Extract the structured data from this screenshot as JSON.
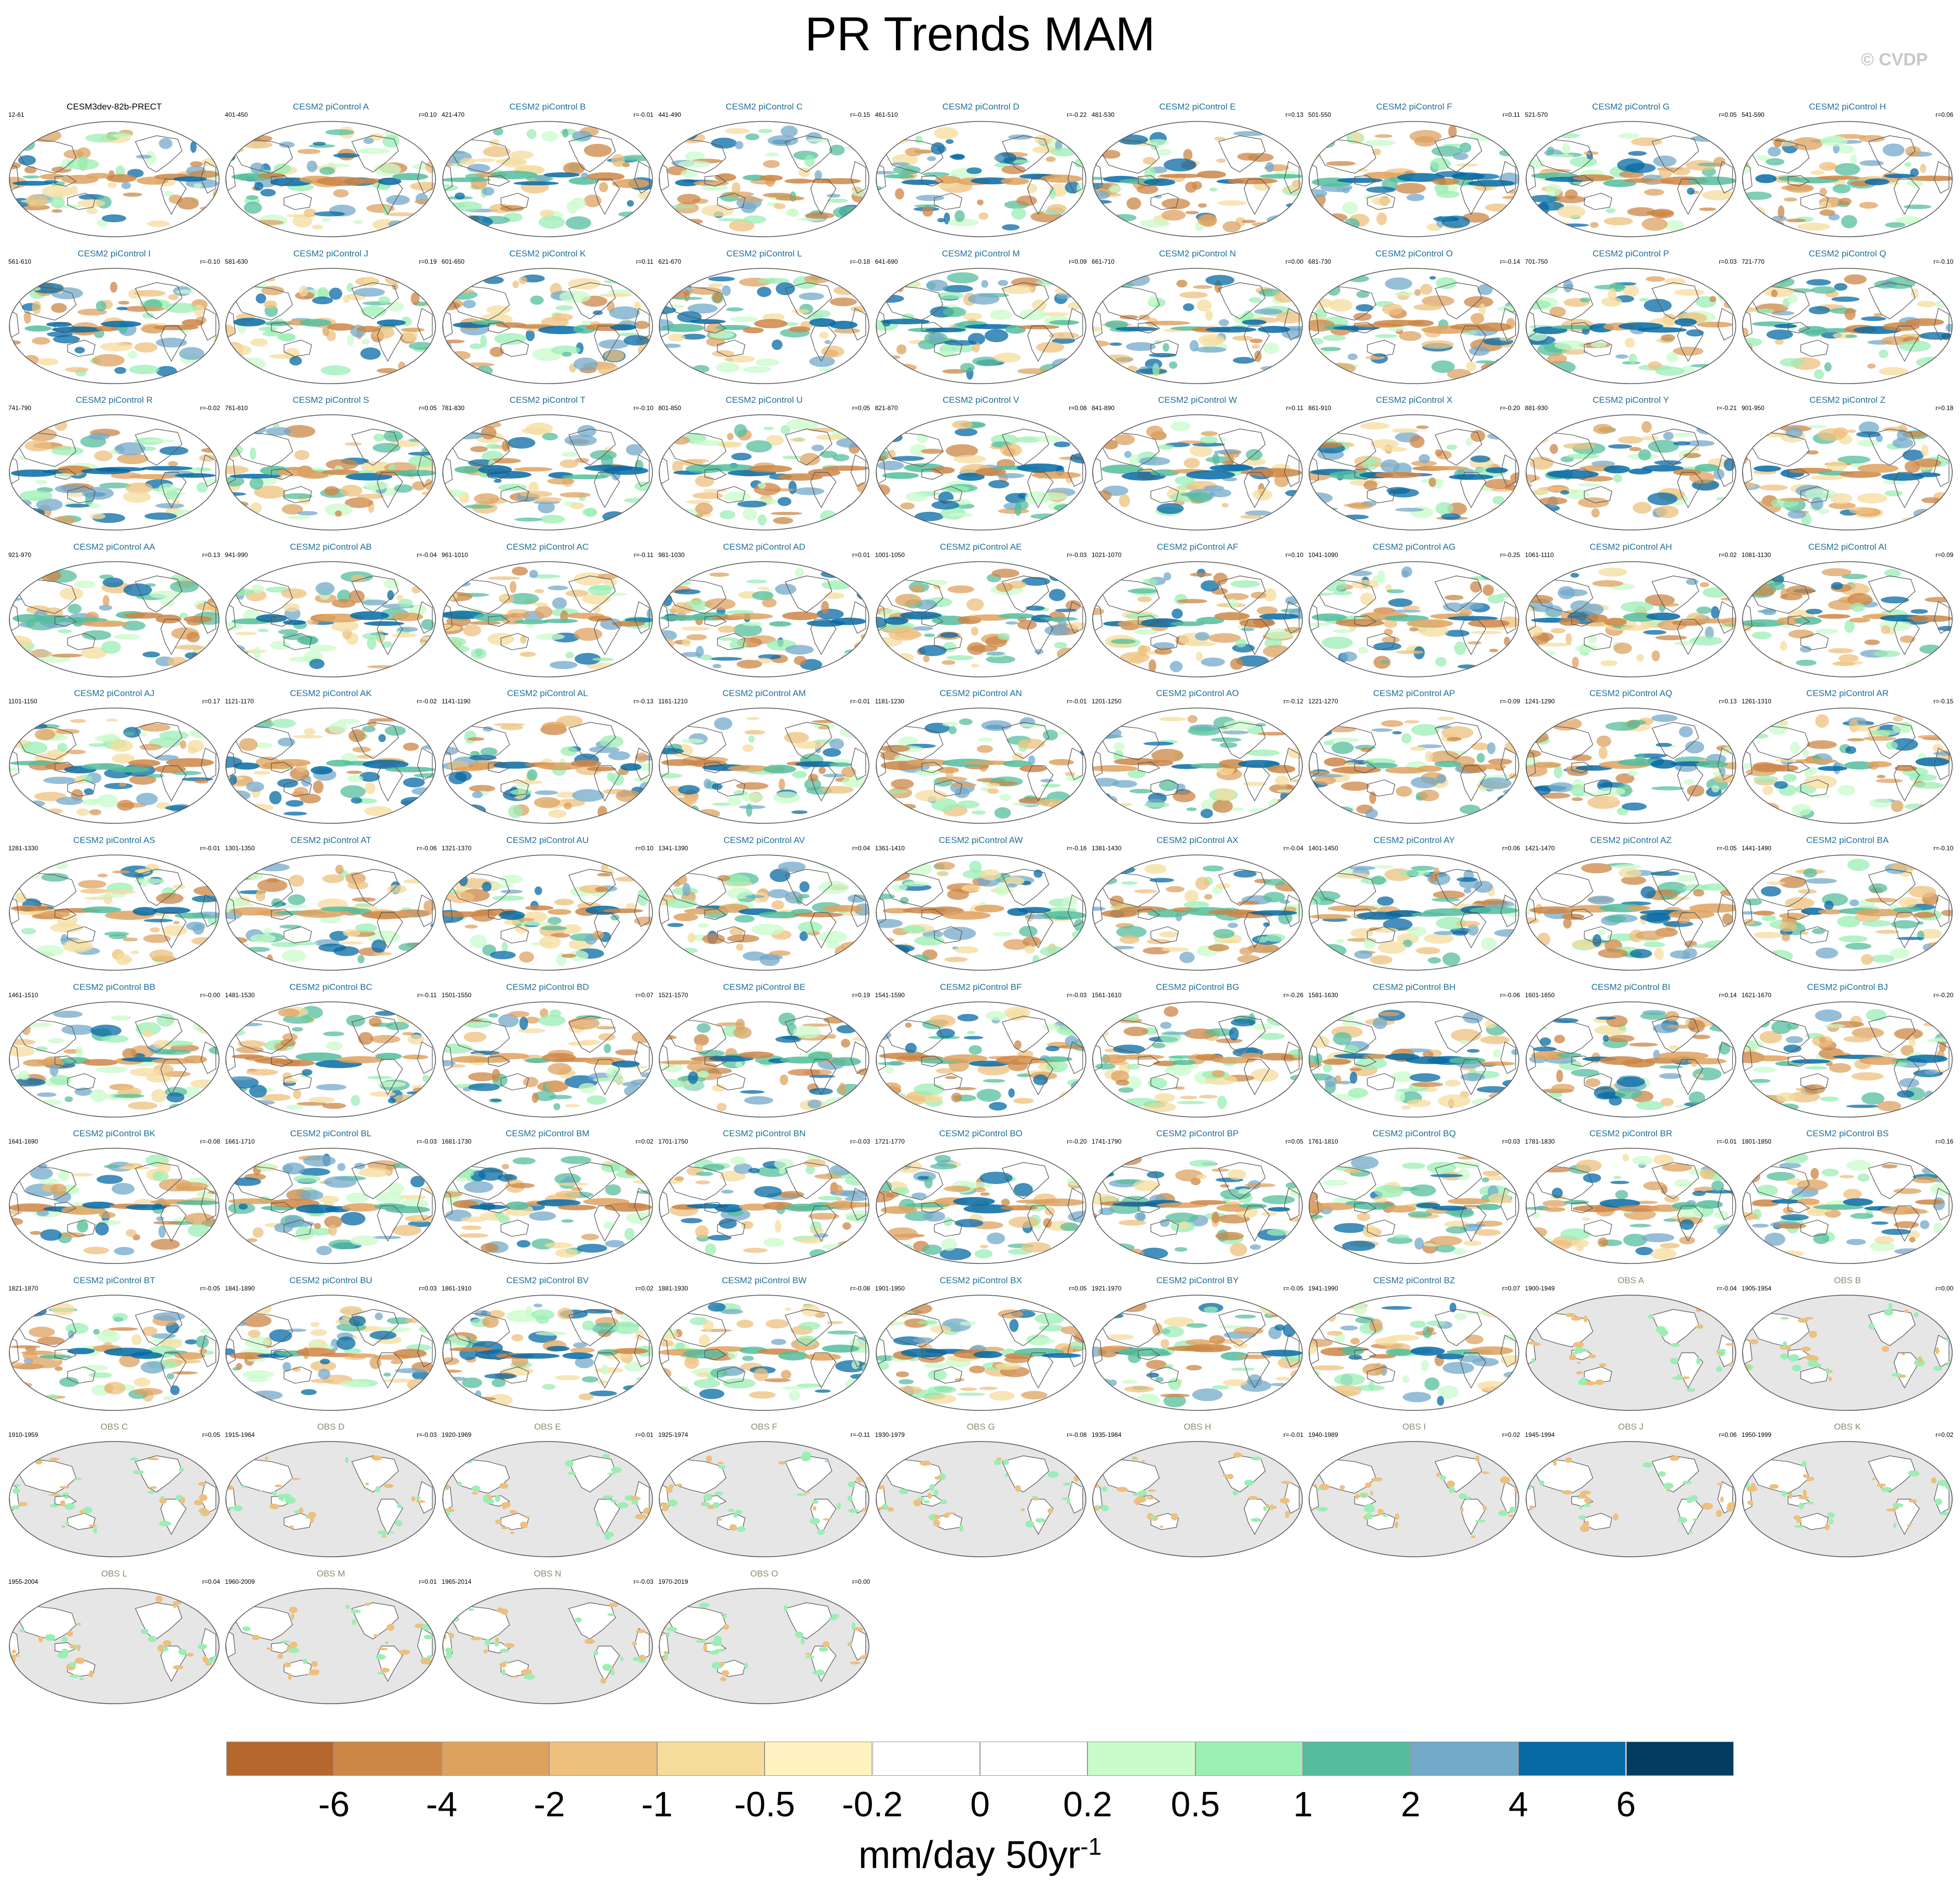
{
  "title": "PR Trends MAM",
  "copyright": "© CVDP",
  "panels": [
    {
      "title": "CESM3dev-82b-PRECT",
      "years": "12-61",
      "r": "",
      "kind": "ref"
    },
    {
      "title": "CESM2 piControl A",
      "years": "401-450",
      "r": "r=0.10",
      "kind": "model"
    },
    {
      "title": "CESM2 piControl B",
      "years": "421-470",
      "r": "r=-0.01",
      "kind": "model"
    },
    {
      "title": "CESM2 piControl C",
      "years": "441-490",
      "r": "r=-0.15",
      "kind": "model"
    },
    {
      "title": "CESM2 piControl D",
      "years": "461-510",
      "r": "r=-0.22",
      "kind": "model"
    },
    {
      "title": "CESM2 piControl E",
      "years": "481-530",
      "r": "r=0.13",
      "kind": "model"
    },
    {
      "title": "CESM2 piControl F",
      "years": "501-550",
      "r": "r=0.11",
      "kind": "model"
    },
    {
      "title": "CESM2 piControl G",
      "years": "521-570",
      "r": "r=0.05",
      "kind": "model"
    },
    {
      "title": "CESM2 piControl H",
      "years": "541-590",
      "r": "r=0.06",
      "kind": "model"
    },
    {
      "title": "CESM2 piControl I",
      "years": "561-610",
      "r": "r=-0.10",
      "kind": "model"
    },
    {
      "title": "CESM2 piControl J",
      "years": "581-630",
      "r": "r=0.19",
      "kind": "model"
    },
    {
      "title": "CESM2 piControl K",
      "years": "601-650",
      "r": "r=0.11",
      "kind": "model"
    },
    {
      "title": "CESM2 piControl L",
      "years": "621-670",
      "r": "r=-0.18",
      "kind": "model"
    },
    {
      "title": "CESM2 piControl M",
      "years": "641-690",
      "r": "r=0.09",
      "kind": "model"
    },
    {
      "title": "CESM2 piControl N",
      "years": "661-710",
      "r": "r=0.00",
      "kind": "model"
    },
    {
      "title": "CESM2 piControl O",
      "years": "681-730",
      "r": "r=-0.14",
      "kind": "model"
    },
    {
      "title": "CESM2 piControl P",
      "years": "701-750",
      "r": "r=0.03",
      "kind": "model"
    },
    {
      "title": "CESM2 piControl Q",
      "years": "721-770",
      "r": "r=-0.10",
      "kind": "model"
    },
    {
      "title": "CESM2 piControl R",
      "years": "741-790",
      "r": "r=-0.02",
      "kind": "model"
    },
    {
      "title": "CESM2 piControl S",
      "years": "761-810",
      "r": "r=0.05",
      "kind": "model"
    },
    {
      "title": "CESM2 piControl T",
      "years": "781-830",
      "r": "r=-0.10",
      "kind": "model"
    },
    {
      "title": "CESM2 piControl U",
      "years": "801-850",
      "r": "r=0.05",
      "kind": "model"
    },
    {
      "title": "CESM2 piControl V",
      "years": "821-870",
      "r": "r=0.08",
      "kind": "model"
    },
    {
      "title": "CESM2 piControl W",
      "years": "841-890",
      "r": "r=0.11",
      "kind": "model"
    },
    {
      "title": "CESM2 piControl X",
      "years": "861-910",
      "r": "r=-0.20",
      "kind": "model"
    },
    {
      "title": "CESM2 piControl Y",
      "years": "881-930",
      "r": "r=-0.21",
      "kind": "model"
    },
    {
      "title": "CESM2 piControl Z",
      "years": "901-950",
      "r": "r=0.18",
      "kind": "model"
    },
    {
      "title": "CESM2 piControl AA",
      "years": "921-970",
      "r": "r=0.13",
      "kind": "model"
    },
    {
      "title": "CESM2 piControl AB",
      "years": "941-990",
      "r": "r=-0.04",
      "kind": "model"
    },
    {
      "title": "CESM2 piControl AC",
      "years": "961-1010",
      "r": "r=-0.11",
      "kind": "model"
    },
    {
      "title": "CESM2 piControl AD",
      "years": "981-1030",
      "r": "r=0.01",
      "kind": "model"
    },
    {
      "title": "CESM2 piControl AE",
      "years": "1001-1050",
      "r": "r=-0.03",
      "kind": "model"
    },
    {
      "title": "CESM2 piControl AF",
      "years": "1021-1070",
      "r": "r=0.10",
      "kind": "model"
    },
    {
      "title": "CESM2 piControl AG",
      "years": "1041-1090",
      "r": "r=-0.25",
      "kind": "model"
    },
    {
      "title": "CESM2 piControl AH",
      "years": "1061-1110",
      "r": "r=0.02",
      "kind": "model"
    },
    {
      "title": "CESM2 piControl AI",
      "years": "1081-1130",
      "r": "r=0.09",
      "kind": "model"
    },
    {
      "title": "CESM2 piControl AJ",
      "years": "1101-1150",
      "r": "r=0.17",
      "kind": "model"
    },
    {
      "title": "CESM2 piControl AK",
      "years": "1121-1170",
      "r": "r=-0.02",
      "kind": "model"
    },
    {
      "title": "CESM2 piControl AL",
      "years": "1141-1190",
      "r": "r=-0.13",
      "kind": "model"
    },
    {
      "title": "CESM2 piControl AM",
      "years": "1161-1210",
      "r": "r=-0.01",
      "kind": "model"
    },
    {
      "title": "CESM2 piControl AN",
      "years": "1181-1230",
      "r": "r=-0.01",
      "kind": "model"
    },
    {
      "title": "CESM2 piControl AO",
      "years": "1201-1250",
      "r": "r=-0.12",
      "kind": "model"
    },
    {
      "title": "CESM2 piControl AP",
      "years": "1221-1270",
      "r": "r=-0.09",
      "kind": "model"
    },
    {
      "title": "CESM2 piControl AQ",
      "years": "1241-1290",
      "r": "r=0.13",
      "kind": "model"
    },
    {
      "title": "CESM2 piControl AR",
      "years": "1261-1310",
      "r": "r=-0.15",
      "kind": "model"
    },
    {
      "title": "CESM2 piControl AS",
      "years": "1281-1330",
      "r": "r=-0.01",
      "kind": "model"
    },
    {
      "title": "CESM2 piControl AT",
      "years": "1301-1350",
      "r": "r=-0.06",
      "kind": "model"
    },
    {
      "title": "CESM2 piControl AU",
      "years": "1321-1370",
      "r": "r=0.10",
      "kind": "model"
    },
    {
      "title": "CESM2 piControl AV",
      "years": "1341-1390",
      "r": "r=0.04",
      "kind": "model"
    },
    {
      "title": "CESM2 piControl AW",
      "years": "1361-1410",
      "r": "r=-0.16",
      "kind": "model"
    },
    {
      "title": "CESM2 piControl AX",
      "years": "1381-1430",
      "r": "r=-0.04",
      "kind": "model"
    },
    {
      "title": "CESM2 piControl AY",
      "years": "1401-1450",
      "r": "r=0.06",
      "kind": "model"
    },
    {
      "title": "CESM2 piControl AZ",
      "years": "1421-1470",
      "r": "r=-0.05",
      "kind": "model"
    },
    {
      "title": "CESM2 piControl BA",
      "years": "1441-1490",
      "r": "r=-0.10",
      "kind": "model"
    },
    {
      "title": "CESM2 piControl BB",
      "years": "1461-1510",
      "r": "r=-0.00",
      "kind": "model"
    },
    {
      "title": "CESM2 piControl BC",
      "years": "1481-1530",
      "r": "r=-0.11",
      "kind": "model"
    },
    {
      "title": "CESM2 piControl BD",
      "years": "1501-1550",
      "r": "r=0.07",
      "kind": "model"
    },
    {
      "title": "CESM2 piControl BE",
      "years": "1521-1570",
      "r": "r=0.19",
      "kind": "model"
    },
    {
      "title": "CESM2 piControl BF",
      "years": "1541-1590",
      "r": "r=-0.03",
      "kind": "model"
    },
    {
      "title": "CESM2 piControl BG",
      "years": "1561-1610",
      "r": "r=-0.26",
      "kind": "model"
    },
    {
      "title": "CESM2 piControl BH",
      "years": "1581-1630",
      "r": "r=-0.06",
      "kind": "model"
    },
    {
      "title": "CESM2 piControl BI",
      "years": "1601-1650",
      "r": "r=0.14",
      "kind": "model"
    },
    {
      "title": "CESM2 piControl BJ",
      "years": "1621-1670",
      "r": "r=-0.20",
      "kind": "model"
    },
    {
      "title": "CESM2 piControl BK",
      "years": "1641-1690",
      "r": "r=-0.08",
      "kind": "model"
    },
    {
      "title": "CESM2 piControl BL",
      "years": "1661-1710",
      "r": "r=-0.03",
      "kind": "model"
    },
    {
      "title": "CESM2 piControl BM",
      "years": "1681-1730",
      "r": "r=0.02",
      "kind": "model"
    },
    {
      "title": "CESM2 piControl BN",
      "years": "1701-1750",
      "r": "r=-0.03",
      "kind": "model"
    },
    {
      "title": "CESM2 piControl BO",
      "years": "1721-1770",
      "r": "r=-0.20",
      "kind": "model"
    },
    {
      "title": "CESM2 piControl BP",
      "years": "1741-1790",
      "r": "r=0.05",
      "kind": "model"
    },
    {
      "title": "CESM2 piControl BQ",
      "years": "1761-1810",
      "r": "r=0.03",
      "kind": "model"
    },
    {
      "title": "CESM2 piControl BR",
      "years": "1781-1830",
      "r": "r=-0.01",
      "kind": "model"
    },
    {
      "title": "CESM2 piControl BS",
      "years": "1801-1850",
      "r": "r=0.16",
      "kind": "model"
    },
    {
      "title": "CESM2 piControl BT",
      "years": "1821-1870",
      "r": "r=-0.05",
      "kind": "model"
    },
    {
      "title": "CESM2 piControl BU",
      "years": "1841-1890",
      "r": "r=0.03",
      "kind": "model"
    },
    {
      "title": "CESM2 piControl BV",
      "years": "1861-1910",
      "r": "r=0.02",
      "kind": "model"
    },
    {
      "title": "CESM2 piControl BW",
      "years": "1881-1930",
      "r": "r=-0.08",
      "kind": "model"
    },
    {
      "title": "CESM2 piControl BX",
      "years": "1901-1950",
      "r": "r=0.05",
      "kind": "model"
    },
    {
      "title": "CESM2 piControl BY",
      "years": "1921-1970",
      "r": "r=-0.05",
      "kind": "model"
    },
    {
      "title": "CESM2 piControl BZ",
      "years": "1941-1990",
      "r": "r=0.07",
      "kind": "model"
    },
    {
      "title": "OBS A",
      "years": "1900-1949",
      "r": "r=-0.04",
      "kind": "obs"
    },
    {
      "title": "OBS B",
      "years": "1905-1954",
      "r": "r=0.00",
      "kind": "obs"
    },
    {
      "title": "OBS C",
      "years": "1910-1959",
      "r": "r=0.05",
      "kind": "obs"
    },
    {
      "title": "OBS D",
      "years": "1915-1964",
      "r": "r=-0.03",
      "kind": "obs"
    },
    {
      "title": "OBS E",
      "years": "1920-1969",
      "r": "r=0.01",
      "kind": "obs"
    },
    {
      "title": "OBS F",
      "years": "1925-1974",
      "r": "r=-0.11",
      "kind": "obs"
    },
    {
      "title": "OBS G",
      "years": "1930-1979",
      "r": "r=-0.08",
      "kind": "obs"
    },
    {
      "title": "OBS H",
      "years": "1935-1984",
      "r": "r=-0.01",
      "kind": "obs"
    },
    {
      "title": "OBS I",
      "years": "1940-1989",
      "r": "r=0.02",
      "kind": "obs"
    },
    {
      "title": "OBS J",
      "years": "1945-1994",
      "r": "r=0.06",
      "kind": "obs"
    },
    {
      "title": "OBS K",
      "years": "1950-1999",
      "r": "r=0.02",
      "kind": "obs"
    },
    {
      "title": "OBS L",
      "years": "1955-2004",
      "r": "r=0.04",
      "kind": "obs"
    },
    {
      "title": "OBS M",
      "years": "1960-2009",
      "r": "r=0.01",
      "kind": "obs"
    },
    {
      "title": "OBS N",
      "years": "1965-2014",
      "r": "r=-0.03",
      "kind": "obs"
    },
    {
      "title": "OBS O",
      "years": "1970-2019",
      "r": "r=0.00",
      "kind": "obs"
    }
  ],
  "colorbar": {
    "colors": [
      "#b5682d",
      "#cc8646",
      "#dea260",
      "#edc07e",
      "#f5dc9d",
      "#fdf2c0",
      "#ffffff",
      "#ffffff",
      "#cafbcb",
      "#9beeb4",
      "#55bd9c",
      "#73a9c9",
      "#066aa4",
      "#033c61"
    ],
    "ticks": [
      "-6",
      "-4",
      "-2",
      "-1",
      "-0.5",
      "-0.2",
      "0",
      "0.2",
      "0.5",
      "1",
      "2",
      "4",
      "6"
    ],
    "units_main": "mm/day 50yr",
    "units_sup": "-1"
  },
  "style": {
    "ref_title_color": "#000000",
    "model_title_color": "#1f6f96",
    "obs_title_color": "#8c8c6e",
    "land_fill_obs": "#e6e6e6",
    "coast_color": "#555555"
  }
}
